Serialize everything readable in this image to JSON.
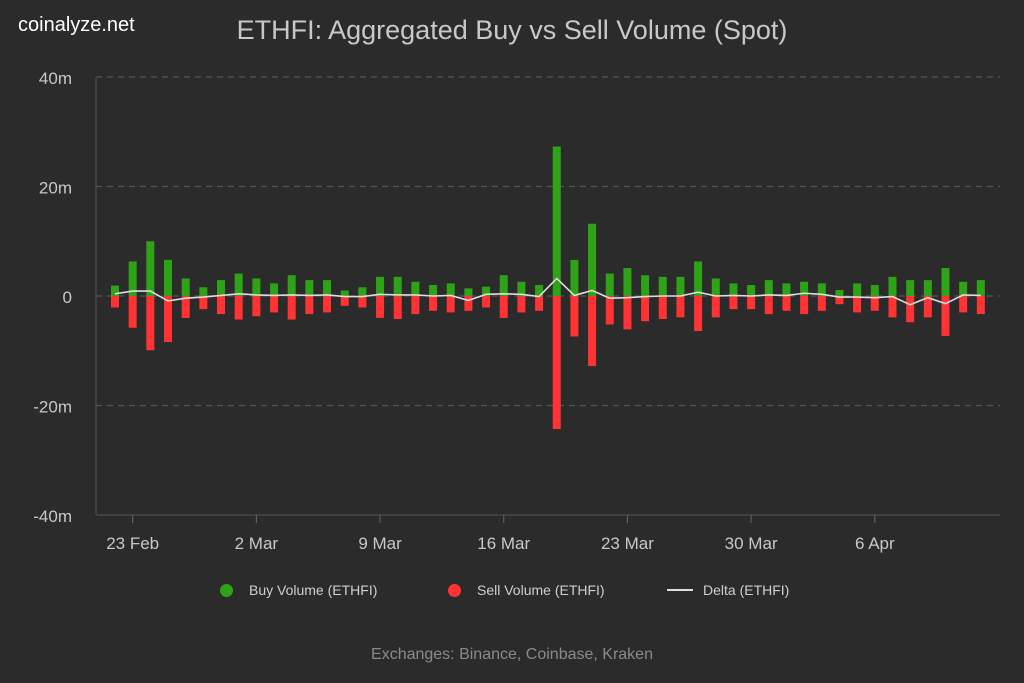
{
  "brand": "coinalyze.net",
  "footer": "Exchanges: Binance, Coinbase, Kraken",
  "chart_data": {
    "type": "bar",
    "title": "ETHFI: Aggregated Buy vs Sell Volume (Spot)",
    "xlabel": "",
    "ylabel": "",
    "ylim": [
      -40,
      40
    ],
    "y_unit": "m",
    "y_ticks": [
      "40m",
      "20m",
      "0",
      "-20m",
      "-40m"
    ],
    "y_tick_values": [
      40,
      20,
      0,
      -20,
      -40
    ],
    "x_ticks": [
      "23 Feb",
      "2 Mar",
      "9 Mar",
      "16 Mar",
      "23 Mar",
      "30 Mar",
      "6 Apr"
    ],
    "grid": true,
    "legend_position": "bottom",
    "colors": {
      "buy": "#2ea318",
      "sell": "#ff3333",
      "delta": "#dddddd"
    },
    "categories": [
      "22 Feb",
      "23 Feb",
      "24 Feb",
      "25 Feb",
      "26 Feb",
      "27 Feb",
      "28 Feb",
      "1 Mar",
      "2 Mar",
      "3 Mar",
      "4 Mar",
      "5 Mar",
      "6 Mar",
      "7 Mar",
      "8 Mar",
      "9 Mar",
      "10 Mar",
      "11 Mar",
      "12 Mar",
      "13 Mar",
      "14 Mar",
      "15 Mar",
      "16 Mar",
      "17 Mar",
      "18 Mar",
      "19 Mar",
      "20 Mar",
      "21 Mar",
      "22 Mar",
      "23 Mar",
      "24 Mar",
      "25 Mar",
      "26 Mar",
      "27 Mar",
      "28 Mar",
      "29 Mar",
      "30 Mar",
      "31 Mar",
      "1 Apr",
      "2 Apr",
      "3 Apr",
      "4 Apr",
      "5 Apr",
      "6 Apr",
      "7 Apr",
      "8 Apr",
      "9 Apr",
      "10 Apr",
      "11 Apr",
      "12 Apr"
    ],
    "series": [
      {
        "name": "Buy Volume (ETHFI)",
        "type": "bar",
        "values": [
          1.9,
          6.3,
          10.0,
          6.6,
          3.2,
          1.6,
          2.9,
          4.1,
          3.2,
          2.3,
          3.8,
          2.9,
          2.9,
          1.0,
          1.6,
          3.5,
          3.5,
          2.6,
          2.0,
          2.3,
          1.4,
          1.7,
          3.8,
          2.6,
          2.0,
          27.3,
          6.6,
          13.2,
          4.1,
          5.1,
          3.8,
          3.5,
          3.5,
          6.3,
          3.2,
          2.3,
          2.0,
          2.9,
          2.3,
          2.6,
          2.3,
          1.1,
          2.3,
          2.0,
          3.5,
          2.9,
          2.9,
          5.1,
          2.6,
          2.9
        ]
      },
      {
        "name": "Sell Volume (ETHFI)",
        "type": "bar",
        "values": [
          -2.1,
          -5.8,
          -9.9,
          -8.4,
          -4.0,
          -2.4,
          -3.3,
          -4.3,
          -3.7,
          -3.0,
          -4.3,
          -3.3,
          -3.0,
          -1.8,
          -2.1,
          -4.0,
          -4.2,
          -3.3,
          -2.7,
          -3.0,
          -2.7,
          -2.1,
          -4.0,
          -3.0,
          -2.7,
          -24.3,
          -7.4,
          -12.8,
          -5.2,
          -6.1,
          -4.6,
          -4.2,
          -3.9,
          -6.4,
          -3.9,
          -2.4,
          -2.4,
          -3.3,
          -2.7,
          -3.3,
          -2.7,
          -1.5,
          -3.0,
          -2.7,
          -3.9,
          -4.8,
          -3.9,
          -7.3,
          -3.0,
          -3.3
        ]
      },
      {
        "name": "Delta (ETHFI)",
        "type": "line",
        "values": [
          0.4,
          0.9,
          0.9,
          -0.9,
          -0.4,
          -0.2,
          0.1,
          0.4,
          0.2,
          0.1,
          0.2,
          0.1,
          0.2,
          -0.1,
          -0.1,
          0.3,
          0.2,
          0.2,
          0.0,
          0.1,
          -0.8,
          0.3,
          0.4,
          0.3,
          -0.1,
          3.2,
          0.1,
          1.0,
          -0.4,
          -0.3,
          -0.1,
          0.0,
          0.0,
          0.7,
          0.0,
          0.1,
          0.0,
          0.2,
          0.1,
          0.5,
          0.3,
          -0.2,
          -0.2,
          -0.3,
          -0.1,
          -1.6,
          -0.3,
          -1.4,
          0.2,
          0.1
        ]
      }
    ]
  }
}
